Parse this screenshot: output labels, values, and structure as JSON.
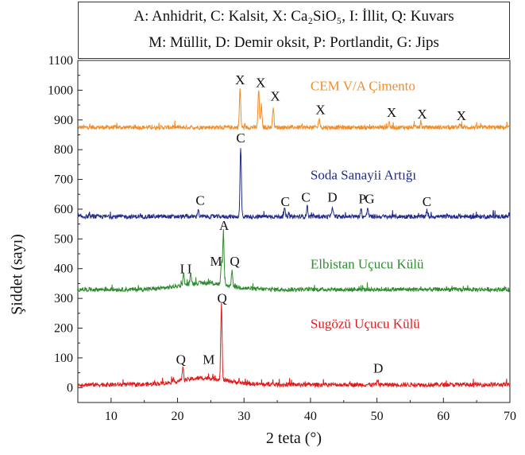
{
  "legend": {
    "line1": "A: Anhidrit, C: Kalsit, X: Ca₂SiO₅, I: İllit, Q: Kuvars",
    "line2": "M: Müllit, D: Demir oksit, P: Portlandit, G: Jips"
  },
  "chart_data": {
    "type": "line",
    "xlabel": "2 teta (°)",
    "ylabel": "Şiddet (sayı)",
    "xlim": [
      5,
      70
    ],
    "ylim": [
      -50,
      1100
    ],
    "xticks": [
      10,
      20,
      30,
      40,
      50,
      60,
      70
    ],
    "yticks": [
      0,
      100,
      200,
      300,
      400,
      500,
      600,
      700,
      800,
      900,
      1000,
      1100
    ],
    "grid": false,
    "series": [
      {
        "name": "CEM V/A Çimento",
        "color": "#f28c28",
        "baseline": 875,
        "peaks": [
          [
            29.4,
            1005
          ],
          [
            32.2,
            1000
          ],
          [
            32.6,
            950
          ],
          [
            34.4,
            945
          ],
          [
            41.3,
            905
          ],
          [
            51.8,
            895
          ],
          [
            56.6,
            890
          ],
          [
            62.5,
            890
          ]
        ],
        "labels": [
          {
            "text": "X",
            "x": 29.4,
            "y": 1020
          },
          {
            "text": "X",
            "x": 32.5,
            "y": 1010
          },
          {
            "text": "X",
            "x": 34.7,
            "y": 965
          },
          {
            "text": "X",
            "x": 41.5,
            "y": 920
          },
          {
            "text": "X",
            "x": 52.2,
            "y": 910
          },
          {
            "text": "X",
            "x": 56.8,
            "y": 905
          },
          {
            "text": "X",
            "x": 62.7,
            "y": 900
          }
        ]
      },
      {
        "name": "Soda Sanayii Artığı",
        "color": "#1f2a8c",
        "baseline": 575,
        "peaks": [
          [
            23.1,
            600
          ],
          [
            29.5,
            805
          ],
          [
            36.1,
            600
          ],
          [
            39.5,
            610
          ],
          [
            43.3,
            610
          ],
          [
            47.6,
            600
          ],
          [
            48.6,
            605
          ],
          [
            57.5,
            595
          ]
        ],
        "labels": [
          {
            "text": "C",
            "x": 23.4,
            "y": 615
          },
          {
            "text": "C",
            "x": 29.5,
            "y": 825
          },
          {
            "text": "C",
            "x": 36.2,
            "y": 610
          },
          {
            "text": "C",
            "x": 39.3,
            "y": 625
          },
          {
            "text": "D",
            "x": 43.3,
            "y": 625
          },
          {
            "text": "P",
            "x": 47.8,
            "y": 620
          },
          {
            "text": "G",
            "x": 48.9,
            "y": 620
          },
          {
            "text": "C",
            "x": 57.5,
            "y": 610
          }
        ]
      },
      {
        "name": "Elbistan Uçucu Külü",
        "color": "#2e8b2e",
        "baseline": 330,
        "peaks": [
          [
            20.9,
            370
          ],
          [
            22.0,
            365
          ],
          [
            26.6,
            400
          ],
          [
            26.9,
            510
          ],
          [
            28.2,
            385
          ]
        ],
        "labels": [
          {
            "text": "I",
            "x": 20.7,
            "y": 385
          },
          {
            "text": "I",
            "x": 21.8,
            "y": 385
          },
          {
            "text": "M",
            "x": 25.8,
            "y": 410
          },
          {
            "text": "A",
            "x": 27.0,
            "y": 530
          },
          {
            "text": "Q",
            "x": 28.6,
            "y": 410
          }
        ]
      },
      {
        "name": "Sugözü Uçucu Külü",
        "color": "#e31a1c",
        "baseline": 10,
        "peaks": [
          [
            20.8,
            55
          ],
          [
            26.6,
            265
          ],
          [
            50.1,
            25
          ]
        ],
        "labels": [
          {
            "text": "Q",
            "x": 20.5,
            "y": 80
          },
          {
            "text": "Q",
            "x": 26.7,
            "y": 285
          },
          {
            "text": "M",
            "x": 24.7,
            "y": 80
          },
          {
            "text": "D",
            "x": 50.2,
            "y": 50
          }
        ]
      }
    ],
    "series_labels": [
      {
        "series": 0,
        "x": 40,
        "y": 1000
      },
      {
        "series": 1,
        "x": 40,
        "y": 700
      },
      {
        "series": 2,
        "x": 40,
        "y": 400
      },
      {
        "series": 3,
        "x": 40,
        "y": 200
      }
    ]
  }
}
